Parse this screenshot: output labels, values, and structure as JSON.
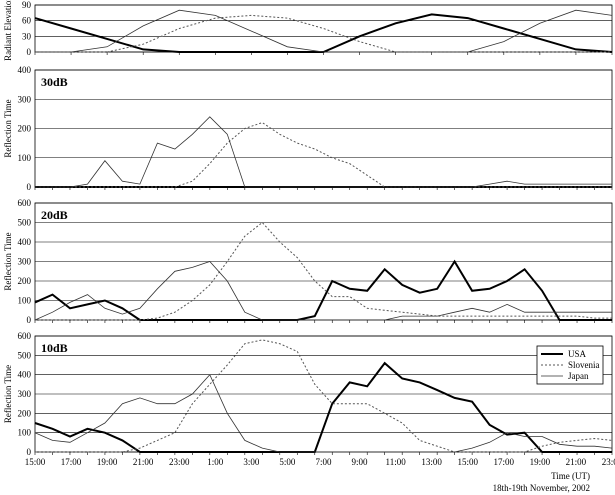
{
  "chart_data": [
    {
      "type": "line",
      "ylabel": "Radiant Elevation",
      "ylim": [
        0,
        90
      ],
      "yticks": [
        "0",
        "30",
        "60",
        "90"
      ],
      "x": [
        "15:00",
        "17:00",
        "19:00",
        "21:00",
        "23:00",
        "1:00",
        "3:00",
        "5:00",
        "7:00",
        "9:00",
        "11:00",
        "13:00",
        "15:00",
        "17:00",
        "19:00",
        "21:00",
        "23:00"
      ],
      "series": [
        {
          "key": "usa",
          "values": [
            65,
            45,
            25,
            5,
            0,
            0,
            0,
            0,
            0,
            30,
            55,
            72,
            65,
            45,
            25,
            5,
            0
          ]
        },
        {
          "key": "slovenia",
          "values": [
            0,
            0,
            0,
            15,
            45,
            65,
            70,
            65,
            45,
            20,
            0,
            0,
            0,
            0,
            0,
            0,
            0
          ]
        },
        {
          "key": "japan",
          "values": [
            0,
            0,
            10,
            50,
            80,
            70,
            40,
            10,
            0,
            0,
            0,
            0,
            0,
            20,
            55,
            80,
            70
          ]
        }
      ]
    },
    {
      "type": "line",
      "panel_label": "30dB",
      "ylabel": "Reflection Time",
      "ylim": [
        0,
        400
      ],
      "yticks": [
        "0",
        "100",
        "200",
        "300",
        "400"
      ],
      "x": [
        "15:00",
        "16:00",
        "17:00",
        "18:00",
        "19:00",
        "20:00",
        "21:00",
        "22:00",
        "23:00",
        "0:00",
        "1:00",
        "2:00",
        "3:00",
        "4:00",
        "5:00",
        "6:00",
        "7:00",
        "8:00",
        "9:00",
        "10:00",
        "11:00",
        "12:00",
        "13:00",
        "14:00",
        "15:00",
        "16:00",
        "17:00",
        "18:00",
        "19:00",
        "20:00",
        "21:00",
        "22:00",
        "23:00",
        "0:00"
      ],
      "series": [
        {
          "key": "usa",
          "values": [
            0,
            0,
            0,
            0,
            0,
            0,
            0,
            0,
            0,
            0,
            0,
            0,
            0,
            0,
            0,
            0,
            0,
            0,
            0,
            0,
            0,
            0,
            0,
            0,
            0,
            0,
            0,
            0,
            0,
            0,
            0,
            0,
            0,
            0
          ]
        },
        {
          "key": "slovenia",
          "values": [
            0,
            0,
            0,
            0,
            0,
            0,
            0,
            0,
            0,
            20,
            80,
            150,
            200,
            220,
            180,
            150,
            130,
            100,
            80,
            40,
            0,
            0,
            0,
            0,
            0,
            0,
            0,
            0,
            0,
            0,
            0,
            0,
            0,
            0
          ]
        },
        {
          "key": "japan",
          "values": [
            0,
            0,
            0,
            10,
            90,
            20,
            10,
            150,
            130,
            180,
            240,
            180,
            0,
            0,
            0,
            0,
            0,
            0,
            0,
            0,
            0,
            0,
            0,
            0,
            0,
            0,
            10,
            20,
            10,
            10,
            10,
            10,
            10,
            10
          ]
        }
      ]
    },
    {
      "type": "line",
      "panel_label": "20dB",
      "ylabel": "Reflection Time",
      "ylim": [
        0,
        600
      ],
      "yticks": [
        "0",
        "100",
        "200",
        "300",
        "400",
        "500",
        "600"
      ],
      "x": [
        "15:00",
        "16:00",
        "17:00",
        "18:00",
        "19:00",
        "20:00",
        "21:00",
        "22:00",
        "23:00",
        "0:00",
        "1:00",
        "2:00",
        "3:00",
        "4:00",
        "5:00",
        "6:00",
        "7:00",
        "8:00",
        "9:00",
        "10:00",
        "11:00",
        "12:00",
        "13:00",
        "14:00",
        "15:00",
        "16:00",
        "17:00",
        "18:00",
        "19:00",
        "20:00",
        "21:00",
        "22:00",
        "23:00",
        "0:00"
      ],
      "series": [
        {
          "key": "usa",
          "values": [
            90,
            130,
            60,
            80,
            100,
            60,
            0,
            0,
            0,
            0,
            0,
            0,
            0,
            0,
            0,
            0,
            20,
            200,
            160,
            150,
            260,
            180,
            140,
            160,
            300,
            150,
            160,
            200,
            260,
            150,
            0,
            0,
            0,
            0
          ]
        },
        {
          "key": "slovenia",
          "values": [
            0,
            0,
            0,
            0,
            0,
            0,
            0,
            10,
            40,
            100,
            180,
            300,
            430,
            500,
            400,
            320,
            200,
            120,
            120,
            60,
            50,
            40,
            30,
            20,
            20,
            20,
            20,
            20,
            20,
            20,
            20,
            20,
            10,
            10
          ]
        },
        {
          "key": "japan",
          "values": [
            0,
            40,
            90,
            130,
            60,
            30,
            60,
            160,
            250,
            270,
            300,
            200,
            40,
            0,
            0,
            0,
            0,
            0,
            0,
            0,
            0,
            20,
            20,
            20,
            40,
            60,
            40,
            80,
            40,
            40,
            40,
            40,
            40,
            40
          ]
        }
      ]
    },
    {
      "type": "line",
      "panel_label": "10dB",
      "ylabel": "Reflection Time",
      "ylim": [
        0,
        600
      ],
      "yticks": [
        "0",
        "100",
        "200",
        "300",
        "400",
        "500",
        "600"
      ],
      "x": [
        "15:00",
        "16:00",
        "17:00",
        "18:00",
        "19:00",
        "20:00",
        "21:00",
        "22:00",
        "23:00",
        "0:00",
        "1:00",
        "2:00",
        "3:00",
        "4:00",
        "5:00",
        "6:00",
        "7:00",
        "8:00",
        "9:00",
        "10:00",
        "11:00",
        "12:00",
        "13:00",
        "14:00",
        "15:00",
        "16:00",
        "17:00",
        "18:00",
        "19:00",
        "20:00",
        "21:00",
        "22:00",
        "23:00",
        "0:00"
      ],
      "series": [
        {
          "key": "usa",
          "values": [
            150,
            120,
            80,
            120,
            100,
            60,
            0,
            0,
            0,
            0,
            0,
            0,
            0,
            0,
            0,
            0,
            0,
            250,
            360,
            340,
            460,
            380,
            360,
            320,
            280,
            260,
            140,
            90,
            100,
            0,
            0,
            0,
            0,
            0
          ]
        },
        {
          "key": "slovenia",
          "values": [
            0,
            0,
            0,
            0,
            0,
            0,
            20,
            60,
            100,
            250,
            350,
            450,
            560,
            580,
            560,
            520,
            350,
            250,
            250,
            250,
            200,
            150,
            60,
            30,
            0,
            0,
            0,
            0,
            0,
            30,
            50,
            60,
            70,
            60
          ]
        },
        {
          "key": "japan",
          "values": [
            100,
            60,
            50,
            100,
            150,
            250,
            280,
            250,
            250,
            300,
            400,
            200,
            60,
            20,
            0,
            0,
            0,
            0,
            0,
            0,
            0,
            0,
            0,
            0,
            0,
            20,
            50,
            100,
            80,
            80,
            40,
            30,
            30,
            20
          ]
        }
      ]
    }
  ],
  "legend": {
    "usa": "USA",
    "slovenia": "Slovenia",
    "japan": "Japan"
  },
  "xaxis": {
    "title": "Time (UT)",
    "ticks": [
      "15:00",
      "17:00",
      "19:00",
      "21:00",
      "23:00",
      "1:00",
      "3:00",
      "5:00",
      "7:00",
      "9:00",
      "11:00",
      "13:00",
      "15:00",
      "17:00",
      "19:00",
      "21:00",
      "23:00"
    ]
  },
  "footnote": "18th-19th November, 2002",
  "colors": {
    "axis": "#000000",
    "grid": "#000000",
    "usa": "#000000",
    "slovenia": "#555555",
    "japan": "#333333"
  }
}
